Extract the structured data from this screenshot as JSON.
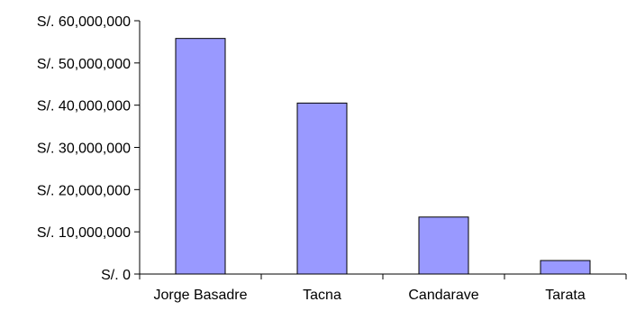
{
  "chart_data": {
    "type": "bar",
    "categories": [
      "Jorge Basadre",
      "Tacna",
      "Candarave",
      "Tarata"
    ],
    "values": [
      55800000,
      40500000,
      13500000,
      3200000
    ],
    "ylim": [
      0,
      60000000
    ],
    "yticks": [
      {
        "value": 0,
        "label": "S/. 0"
      },
      {
        "value": 10000000,
        "label": "S/. 10,000,000"
      },
      {
        "value": 20000000,
        "label": "S/. 20,000,000"
      },
      {
        "value": 30000000,
        "label": "S/. 30,000,000"
      },
      {
        "value": 40000000,
        "label": "S/. 40,000,000"
      },
      {
        "value": 50000000,
        "label": "S/. 50,000,000"
      },
      {
        "value": 60000000,
        "label": "S/. 60,000,000"
      }
    ],
    "title": "",
    "xlabel": "",
    "ylabel": "",
    "grid": false,
    "legend": "none",
    "bar_color": "#9999FF",
    "bar_outline": "#000000"
  }
}
